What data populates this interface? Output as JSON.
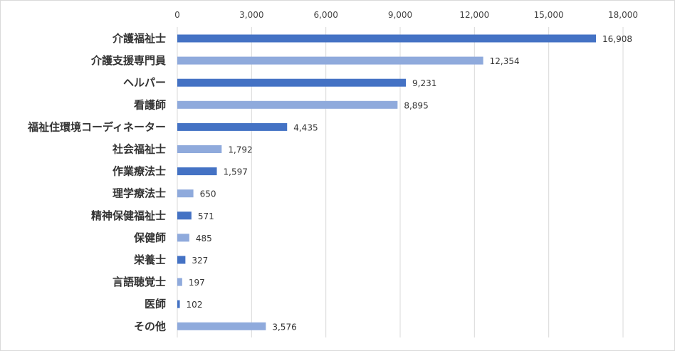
{
  "chart_data": {
    "type": "bar",
    "orientation": "horizontal",
    "title": "",
    "xlabel": "",
    "ylabel": "",
    "xlim": [
      0,
      18000
    ],
    "x_ticks": [
      0,
      3000,
      6000,
      9000,
      12000,
      15000,
      18000
    ],
    "x_tick_labels": [
      "0",
      "3,000",
      "6,000",
      "9,000",
      "12,000",
      "15,000",
      "18,000"
    ],
    "grid": true,
    "legend": "none",
    "categories": [
      "介護福祉士",
      "介護支援専門員",
      "ヘルパー",
      "看護師",
      "福祉住環境コーディネーター",
      "社会福祉士",
      "作業療法士",
      "理学療法士",
      "精神保健福祉士",
      "保健師",
      "栄養士",
      "言語聴覚士",
      "医師",
      "その他"
    ],
    "values": [
      16908,
      12354,
      9231,
      8895,
      4435,
      1792,
      1597,
      650,
      571,
      485,
      327,
      197,
      102,
      3576
    ],
    "value_labels": [
      "16,908",
      "12,354",
      "9,231",
      "8,895",
      "4,435",
      "1,792",
      "1,597",
      "650",
      "571",
      "485",
      "327",
      "197",
      "102",
      "3,576"
    ],
    "colors": [
      "#4472c4",
      "#8faadc"
    ]
  }
}
